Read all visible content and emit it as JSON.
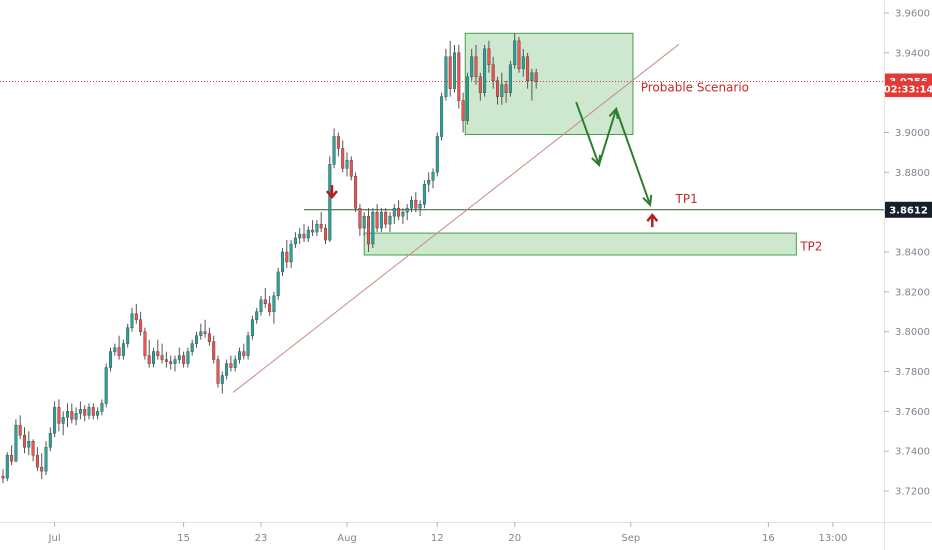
{
  "colors": {
    "bull": "#26a69a",
    "bear": "#ef5350",
    "wick": "#555555",
    "zone_fill": "#a5d6a7",
    "zone_stroke": "#43a047",
    "trendline": "#c58b84",
    "tp1_line": "#2e5d2e",
    "current_price_line": "#e53935",
    "scenario_arrow": "#2e7d32",
    "marker_arrow": "#b71c1c",
    "label_text": "#c62828",
    "price_tag_red": "#e53935",
    "price_tag_dark": "#17202a",
    "axis_text": "#7f8691"
  },
  "chart_data": {
    "type": "candlestick",
    "y_ticks": [
      "3.9600",
      "3.9400",
      "3.9200",
      "3.9000",
      "3.8800",
      "3.8600",
      "3.8400",
      "3.8200",
      "3.8000",
      "3.7800",
      "3.7600",
      "3.7400",
      "3.7200"
    ],
    "y_tick_values": [
      3.96,
      3.94,
      3.92,
      3.9,
      3.88,
      3.86,
      3.84,
      3.82,
      3.8,
      3.78,
      3.76,
      3.74,
      3.72
    ],
    "ylim": [
      3.713,
      3.964
    ],
    "x_ticks": [
      {
        "label": "Jul",
        "bar": 12
      },
      {
        "label": "15",
        "bar": 42
      },
      {
        "label": "23",
        "bar": 60
      },
      {
        "label": "Aug",
        "bar": 80
      },
      {
        "label": "12",
        "bar": 101
      },
      {
        "label": "20",
        "bar": 119
      },
      {
        "label": "Sep",
        "bar": 146
      },
      {
        "label": "16",
        "bar": 178
      },
      {
        "label": "13:00",
        "bar": 193
      }
    ],
    "price_tags": [
      {
        "value": "3.9256",
        "price": 3.9256,
        "style": "red"
      },
      {
        "value": "02:33:14",
        "price": 3.9218,
        "style": "red"
      },
      {
        "value": "3.8612",
        "price": 3.8612,
        "style": "dark"
      }
    ],
    "horizontal_lines": {
      "current_price": 3.9256,
      "tp1_level": 3.8612,
      "tp1_start_bar": 70
    },
    "zones": [
      {
        "name": "probable-scenario-zone",
        "bar_start": 107.5,
        "bar_end": 146.5,
        "price_low": 3.899,
        "price_high": 3.9498
      },
      {
        "name": "tp2-zone",
        "bar_start": 84,
        "bar_end": 184.5,
        "price_low": 3.8385,
        "price_high": 3.8495
      }
    ],
    "trendline": {
      "from": [
        53.5,
        3.7695
      ],
      "to": [
        157.2,
        3.9443
      ]
    },
    "scenario_path": [
      [
        133.3,
        3.9152
      ],
      [
        138.6,
        3.8837
      ],
      [
        142.6,
        3.9118
      ],
      [
        150.5,
        3.8637
      ]
    ],
    "marker_arrows": [
      {
        "bar": 76.5,
        "price": 3.8706,
        "direction": "down"
      },
      {
        "bar": 151.0,
        "price": 3.8555,
        "direction": "up"
      }
    ],
    "annotations": [
      {
        "text": "Probable Scenario",
        "bar": 148.3,
        "price": 3.9225
      },
      {
        "text": "TP1",
        "bar": 156.4,
        "price": 3.8667
      },
      {
        "text": "TP2",
        "bar": 185.4,
        "price": 3.8428
      }
    ],
    "ohlc": [
      [
        3.7275,
        3.731,
        3.724,
        3.7265
      ],
      [
        3.7265,
        3.7395,
        3.725,
        3.738
      ],
      [
        3.738,
        3.743,
        3.733,
        3.735
      ],
      [
        3.735,
        3.756,
        3.7345,
        3.753
      ],
      [
        3.753,
        3.758,
        3.746,
        3.748
      ],
      [
        3.748,
        3.752,
        3.739,
        3.742
      ],
      [
        3.742,
        3.75,
        3.738,
        3.745
      ],
      [
        3.745,
        3.746,
        3.735,
        3.738
      ],
      [
        3.738,
        3.742,
        3.73,
        3.732
      ],
      [
        3.732,
        3.739,
        3.726,
        3.73
      ],
      [
        3.73,
        3.745,
        3.728,
        3.742
      ],
      [
        3.742,
        3.752,
        3.74,
        3.749
      ],
      [
        3.749,
        3.765,
        3.747,
        3.762
      ],
      [
        3.762,
        3.766,
        3.75,
        3.754
      ],
      [
        3.754,
        3.76,
        3.748,
        3.757
      ],
      [
        3.757,
        3.764,
        3.752,
        3.76
      ],
      [
        3.76,
        3.764,
        3.754,
        3.756
      ],
      [
        3.756,
        3.762,
        3.753,
        3.759
      ],
      [
        3.759,
        3.765,
        3.756,
        3.761
      ],
      [
        3.761,
        3.763,
        3.755,
        3.758
      ],
      [
        3.758,
        3.764,
        3.756,
        3.762
      ],
      [
        3.762,
        3.764,
        3.756,
        3.758
      ],
      [
        3.758,
        3.762,
        3.756,
        3.76
      ],
      [
        3.76,
        3.766,
        3.758,
        3.764
      ],
      [
        3.764,
        3.784,
        3.762,
        3.782
      ],
      [
        3.782,
        3.792,
        3.78,
        3.79
      ],
      [
        3.79,
        3.794,
        3.788,
        3.792
      ],
      [
        3.792,
        3.798,
        3.786,
        3.788
      ],
      [
        3.788,
        3.796,
        3.786,
        3.794
      ],
      [
        3.794,
        3.804,
        3.792,
        3.802
      ],
      [
        3.802,
        3.812,
        3.8,
        3.809
      ],
      [
        3.809,
        3.814,
        3.804,
        3.806
      ],
      [
        3.806,
        3.81,
        3.798,
        3.8
      ],
      [
        3.8,
        3.802,
        3.786,
        3.788
      ],
      [
        3.788,
        3.796,
        3.782,
        3.784
      ],
      [
        3.784,
        3.792,
        3.782,
        3.79
      ],
      [
        3.79,
        3.796,
        3.786,
        3.788
      ],
      [
        3.788,
        3.794,
        3.784,
        3.786
      ],
      [
        3.786,
        3.79,
        3.782,
        3.785
      ],
      [
        3.785,
        3.788,
        3.781,
        3.784
      ],
      [
        3.784,
        3.788,
        3.78,
        3.786
      ],
      [
        3.786,
        3.792,
        3.784,
        3.788
      ],
      [
        3.788,
        3.79,
        3.782,
        3.784
      ],
      [
        3.784,
        3.792,
        3.782,
        3.79
      ],
      [
        3.79,
        3.796,
        3.788,
        3.794
      ],
      [
        3.794,
        3.8,
        3.792,
        3.798
      ],
      [
        3.798,
        3.804,
        3.796,
        3.8
      ],
      [
        3.8,
        3.806,
        3.797,
        3.799
      ],
      [
        3.799,
        3.802,
        3.793,
        3.795
      ],
      [
        3.795,
        3.798,
        3.784,
        3.786
      ],
      [
        3.786,
        3.788,
        3.772,
        3.774
      ],
      [
        3.774,
        3.78,
        3.769,
        3.778
      ],
      [
        3.778,
        3.786,
        3.776,
        3.784
      ],
      [
        3.784,
        3.788,
        3.78,
        3.782
      ],
      [
        3.782,
        3.788,
        3.78,
        3.786
      ],
      [
        3.786,
        3.792,
        3.784,
        3.79
      ],
      [
        3.79,
        3.794,
        3.786,
        3.788
      ],
      [
        3.788,
        3.8,
        3.786,
        3.798
      ],
      [
        3.798,
        3.808,
        3.796,
        3.806
      ],
      [
        3.806,
        3.812,
        3.804,
        3.81
      ],
      [
        3.81,
        3.818,
        3.808,
        3.816
      ],
      [
        3.816,
        3.822,
        3.812,
        3.814
      ],
      [
        3.814,
        3.818,
        3.808,
        3.81
      ],
      [
        3.81,
        3.82,
        3.804,
        3.818
      ],
      [
        3.818,
        3.832,
        3.816,
        3.83
      ],
      [
        3.83,
        3.842,
        3.828,
        3.84
      ],
      [
        3.84,
        3.846,
        3.832,
        3.835
      ],
      [
        3.835,
        3.846,
        3.832,
        3.844
      ],
      [
        3.844,
        3.85,
        3.842,
        3.847
      ],
      [
        3.847,
        3.852,
        3.844,
        3.849
      ],
      [
        3.849,
        3.854,
        3.845,
        3.847
      ],
      [
        3.847,
        3.853,
        3.845,
        3.851
      ],
      [
        3.851,
        3.856,
        3.848,
        3.85
      ],
      [
        3.85,
        3.856,
        3.848,
        3.854
      ],
      [
        3.854,
        3.86,
        3.85,
        3.852
      ],
      [
        3.852,
        3.854,
        3.844,
        3.846
      ],
      [
        3.846,
        3.888,
        3.845,
        3.884
      ],
      [
        3.884,
        3.902,
        3.882,
        3.898
      ],
      [
        3.898,
        3.9,
        3.888,
        3.892
      ],
      [
        3.892,
        3.896,
        3.88,
        3.882
      ],
      [
        3.882,
        3.89,
        3.878,
        3.886
      ],
      [
        3.886,
        3.888,
        3.876,
        3.878
      ],
      [
        3.878,
        3.88,
        3.86,
        3.862
      ],
      [
        3.862,
        3.864,
        3.848,
        3.852
      ],
      [
        3.852,
        3.86,
        3.848,
        3.858
      ],
      [
        3.858,
        3.862,
        3.84,
        3.844
      ],
      [
        3.844,
        3.862,
        3.842,
        3.86
      ],
      [
        3.86,
        3.864,
        3.85,
        3.852
      ],
      [
        3.852,
        3.862,
        3.85,
        3.86
      ],
      [
        3.86,
        3.862,
        3.852,
        3.854
      ],
      [
        3.854,
        3.86,
        3.85,
        3.858
      ],
      [
        3.858,
        3.864,
        3.854,
        3.862
      ],
      [
        3.862,
        3.866,
        3.856,
        3.858
      ],
      [
        3.858,
        3.862,
        3.854,
        3.86
      ],
      [
        3.86,
        3.864,
        3.856,
        3.862
      ],
      [
        3.862,
        3.868,
        3.86,
        3.866
      ],
      [
        3.866,
        3.87,
        3.86,
        3.862
      ],
      [
        3.862,
        3.866,
        3.858,
        3.864
      ],
      [
        3.864,
        3.876,
        3.862,
        3.874
      ],
      [
        3.874,
        3.88,
        3.87,
        3.876
      ],
      [
        3.876,
        3.882,
        3.872,
        3.88
      ],
      [
        3.88,
        3.9,
        3.878,
        3.898
      ],
      [
        3.898,
        3.92,
        3.896,
        3.918
      ],
      [
        3.918,
        3.942,
        3.916,
        3.938
      ],
      [
        3.938,
        3.946,
        3.918,
        3.922
      ],
      [
        3.922,
        3.944,
        3.92,
        3.94
      ],
      [
        3.94,
        3.944,
        3.912,
        3.916
      ],
      [
        3.916,
        3.92,
        3.9,
        3.906
      ],
      [
        3.906,
        3.93,
        3.904,
        3.928
      ],
      [
        3.928,
        3.942,
        3.926,
        3.938
      ],
      [
        3.938,
        3.944,
        3.924,
        3.928
      ],
      [
        3.928,
        3.93,
        3.916,
        3.92
      ],
      [
        3.92,
        3.944,
        3.918,
        3.942
      ],
      [
        3.942,
        3.946,
        3.93,
        3.934
      ],
      [
        3.934,
        3.938,
        3.922,
        3.926
      ],
      [
        3.926,
        3.928,
        3.914,
        3.918
      ],
      [
        3.918,
        3.93,
        3.914,
        3.924
      ],
      [
        3.924,
        3.926,
        3.915,
        3.92
      ],
      [
        3.92,
        3.936,
        3.918,
        3.934
      ],
      [
        3.934,
        3.95,
        3.932,
        3.946
      ],
      [
        3.946,
        3.948,
        3.93,
        3.932
      ],
      [
        3.932,
        3.942,
        3.928,
        3.938
      ],
      [
        3.938,
        3.94,
        3.922,
        3.926
      ],
      [
        3.926,
        3.932,
        3.916,
        3.93
      ],
      [
        3.93,
        3.932,
        3.922,
        3.9256
      ]
    ]
  }
}
